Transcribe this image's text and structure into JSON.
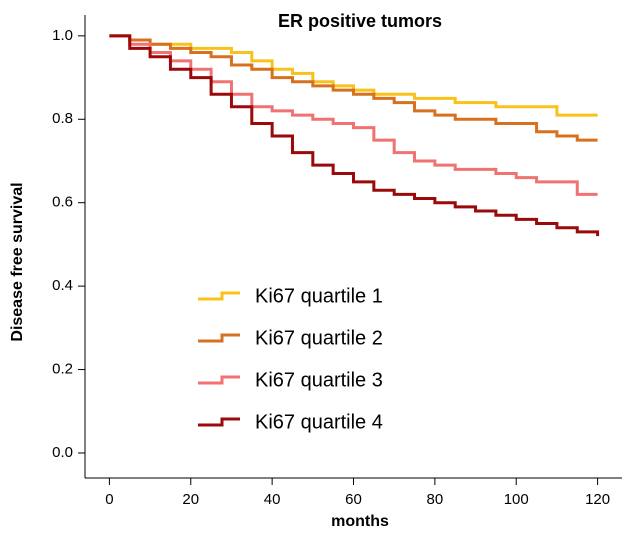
{
  "chart_data": {
    "type": "step",
    "title": "ER positive tumors",
    "x_label": "months",
    "y_label": "Disease free survival",
    "x": [
      0,
      5,
      10,
      15,
      20,
      25,
      30,
      35,
      40,
      45,
      50,
      55,
      60,
      65,
      70,
      75,
      80,
      85,
      90,
      95,
      100,
      105,
      110,
      115,
      120
    ],
    "series": [
      {
        "name": "Ki67 quartile 1",
        "color": "#f7c21b",
        "values": [
          1.0,
          0.99,
          0.98,
          0.98,
          0.97,
          0.97,
          0.96,
          0.94,
          0.92,
          0.91,
          0.89,
          0.88,
          0.87,
          0.86,
          0.86,
          0.85,
          0.85,
          0.84,
          0.84,
          0.83,
          0.83,
          0.83,
          0.81,
          0.81,
          0.81
        ]
      },
      {
        "name": "Ki67 quartile 2",
        "color": "#d7701f",
        "values": [
          1.0,
          0.99,
          0.98,
          0.97,
          0.96,
          0.95,
          0.93,
          0.92,
          0.9,
          0.89,
          0.88,
          0.87,
          0.86,
          0.85,
          0.84,
          0.82,
          0.81,
          0.8,
          0.8,
          0.79,
          0.79,
          0.77,
          0.76,
          0.75,
          0.75
        ]
      },
      {
        "name": "Ki67 quartile 3",
        "color": "#f07272",
        "values": [
          1.0,
          0.98,
          0.96,
          0.94,
          0.92,
          0.89,
          0.86,
          0.83,
          0.82,
          0.81,
          0.8,
          0.79,
          0.78,
          0.75,
          0.72,
          0.7,
          0.69,
          0.68,
          0.68,
          0.67,
          0.66,
          0.65,
          0.65,
          0.62,
          0.62
        ]
      },
      {
        "name": "Ki67 quartile 4",
        "color": "#9b0a0a",
        "values": [
          1.0,
          0.97,
          0.95,
          0.92,
          0.9,
          0.86,
          0.83,
          0.79,
          0.76,
          0.72,
          0.69,
          0.67,
          0.65,
          0.63,
          0.62,
          0.61,
          0.6,
          0.59,
          0.58,
          0.57,
          0.56,
          0.55,
          0.54,
          0.53,
          0.52
        ]
      }
    ],
    "xlim": [
      -6,
      126
    ],
    "ylim": [
      -0.06,
      1.05
    ],
    "xticks": [
      0,
      20,
      40,
      60,
      80,
      100,
      120
    ],
    "yticks": [
      {
        "value": 0,
        "label": "0.0"
      },
      0.2,
      0.4,
      0.6,
      0.8,
      {
        "value": 1,
        "label": "1.0"
      }
    ]
  }
}
